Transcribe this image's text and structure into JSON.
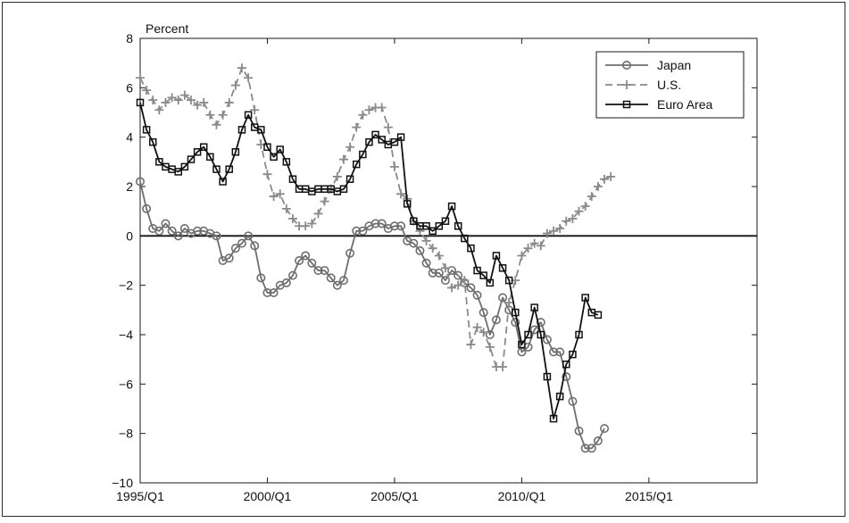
{
  "chart_data": {
    "type": "line",
    "ylabel": "Percent",
    "ylim": [
      -10,
      8
    ],
    "yticks": [
      -10,
      -8,
      -6,
      -4,
      -2,
      0,
      2,
      4,
      6,
      8
    ],
    "xlim": [
      1995.0,
      2019.25
    ],
    "xticks": [
      {
        "value": 1995.0,
        "label": "1995/Q1"
      },
      {
        "value": 2000.0,
        "label": "2000/Q1"
      },
      {
        "value": 2005.0,
        "label": "2005/Q1"
      },
      {
        "value": 2010.0,
        "label": "2010/Q1"
      },
      {
        "value": 2015.0,
        "label": "2015/Q1"
      }
    ],
    "x_start": 1995.0,
    "x_step": 0.25,
    "zero_line": true,
    "legend_position": "top-right",
    "series": [
      {
        "name": "Japan",
        "color": "#6e6e6e",
        "style": "solid",
        "marker": "circle",
        "values": [
          2.2,
          1.1,
          0.3,
          0.2,
          0.5,
          0.2,
          0.0,
          0.3,
          0.1,
          0.2,
          0.2,
          0.1,
          0.0,
          -1.0,
          -0.9,
          -0.5,
          -0.3,
          0.0,
          -0.4,
          -1.7,
          -2.3,
          -2.3,
          -2.0,
          -1.9,
          -1.6,
          -1.0,
          -0.8,
          -1.1,
          -1.4,
          -1.4,
          -1.7,
          -2.0,
          -1.8,
          -0.7,
          0.2,
          0.2,
          0.4,
          0.5,
          0.5,
          0.3,
          0.4,
          0.4,
          -0.2,
          -0.3,
          -0.6,
          -1.1,
          -1.5,
          -1.5,
          -1.8,
          -1.4,
          -1.6,
          -1.9,
          -2.1,
          -2.4,
          -3.1,
          -4.0,
          -3.4,
          -2.5,
          -3.0,
          -3.5,
          -4.7,
          -4.5,
          -3.8,
          -3.5,
          -4.2,
          -4.7,
          -4.7,
          -5.7,
          -6.7,
          -7.9,
          -8.6,
          -8.6,
          -8.3,
          -7.8
        ]
      },
      {
        "name": "U.S.",
        "color": "#8a8a8a",
        "style": "dashed",
        "marker": "plus",
        "values": [
          6.4,
          5.9,
          5.5,
          5.1,
          5.4,
          5.6,
          5.5,
          5.7,
          5.5,
          5.3,
          5.4,
          4.9,
          4.5,
          4.9,
          5.4,
          6.1,
          6.8,
          6.4,
          5.1,
          3.7,
          2.5,
          1.6,
          1.7,
          1.1,
          0.7,
          0.4,
          0.4,
          0.5,
          0.9,
          1.4,
          1.9,
          2.4,
          3.1,
          3.6,
          4.4,
          4.9,
          5.1,
          5.2,
          5.2,
          4.4,
          2.8,
          1.7,
          1.5,
          0.6,
          0.2,
          -0.2,
          -0.5,
          -0.8,
          -1.3,
          -2.1,
          -2.0,
          -1.8,
          -4.4,
          -3.7,
          -3.9,
          -4.5,
          -5.3,
          -5.3,
          -2.7,
          -1.8,
          -0.8,
          -0.5,
          -0.3,
          -0.4,
          0.1,
          0.2,
          0.3,
          0.6,
          0.7,
          1.0,
          1.2,
          1.6,
          2.0,
          2.3,
          2.4
        ]
      },
      {
        "name": "Euro Area",
        "color": "#111111",
        "style": "solid",
        "marker": "square",
        "values": [
          5.4,
          4.3,
          3.8,
          3.0,
          2.8,
          2.7,
          2.6,
          2.8,
          3.1,
          3.4,
          3.6,
          3.2,
          2.7,
          2.2,
          2.7,
          3.4,
          4.3,
          4.9,
          4.4,
          4.3,
          3.6,
          3.2,
          3.5,
          3.0,
          2.3,
          1.9,
          1.9,
          1.8,
          1.9,
          1.9,
          1.9,
          1.8,
          1.9,
          2.3,
          2.9,
          3.3,
          3.8,
          4.1,
          3.9,
          3.7,
          3.8,
          4.0,
          1.3,
          0.6,
          0.4,
          0.4,
          0.2,
          0.4,
          0.6,
          1.2,
          0.4,
          -0.1,
          -0.5,
          -1.4,
          -1.6,
          -1.9,
          -0.8,
          -1.3,
          -1.8,
          -3.1,
          -4.4,
          -4.0,
          -2.9,
          -4.0,
          -5.7,
          -7.4,
          -6.5,
          -5.2,
          -4.8,
          -4.0,
          -2.5,
          -3.1,
          -3.2
        ]
      }
    ]
  }
}
